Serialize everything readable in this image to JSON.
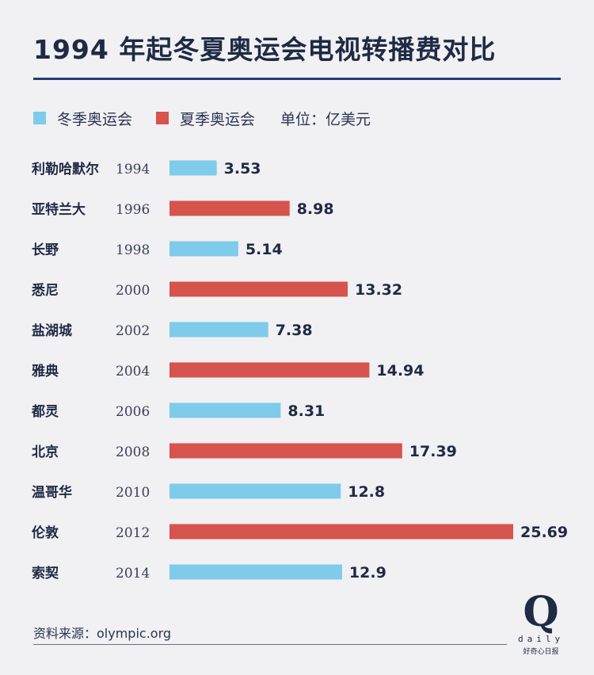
{
  "title": "1994 年起冬夏奥运会电视转播费对比",
  "legend": {
    "winter_label": "冬季奥运会",
    "summer_label": "夏季奥运会",
    "unit": "单位：亿美元"
  },
  "colors": {
    "winter": "#7fcbea",
    "summer": "#d6534e",
    "text": "#1f2a44",
    "accent_rule": "#1f3d78"
  },
  "chart_data": {
    "type": "bar",
    "orientation": "horizontal",
    "title": "1994 年起冬夏奥运会电视转播费对比",
    "unit": "亿美元",
    "categories": [
      "利勒哈默尔",
      "亚特兰大",
      "长野",
      "悉尼",
      "盐湖城",
      "雅典",
      "都灵",
      "北京",
      "温哥华",
      "伦敦",
      "索契"
    ],
    "years": [
      "1994",
      "1996",
      "1998",
      "2000",
      "2002",
      "2004",
      "2006",
      "2008",
      "2010",
      "2012",
      "2014"
    ],
    "values": [
      3.53,
      8.98,
      5.14,
      13.32,
      7.38,
      14.94,
      8.31,
      17.39,
      12.8,
      25.69,
      12.9
    ],
    "value_labels": [
      "3.53",
      "8.98",
      "5.14",
      "13.32",
      "7.38",
      "14.94",
      "8.31",
      "17.39",
      "12.8",
      "25.69",
      "12.9"
    ],
    "season": [
      "winter",
      "summer",
      "winter",
      "summer",
      "winter",
      "summer",
      "winter",
      "summer",
      "winter",
      "summer",
      "winter"
    ],
    "series": [
      {
        "name": "冬季奥运会",
        "key": "winter"
      },
      {
        "name": "夏季奥运会",
        "key": "summer"
      }
    ],
    "xlim": [
      0,
      25.69
    ],
    "grid": false,
    "legend_position": "top-left"
  },
  "source": "资料来源：olympic.org",
  "logo": {
    "mark": "Q",
    "word": "daily",
    "tagline": "好奇心日报"
  }
}
